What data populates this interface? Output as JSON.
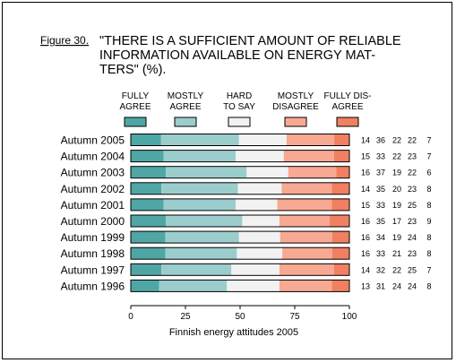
{
  "figure_label": "Figure 30.",
  "title_lines": [
    "\"THERE IS A SUFFICIENT AMOUNT OF RELIABLE",
    "INFORMATION AVAILABLE ON ENERGY MAT-",
    "TERS\" (%)."
  ],
  "source_note": "Finnish energy attitudes 2005",
  "chart_data": {
    "type": "bar",
    "orientation": "horizontal",
    "stacked": true,
    "title": "\"THERE IS A SUFFICIENT AMOUNT OF RELIABLE INFORMATION AVAILABLE ON ENERGY MATTERS\" (%).",
    "categories": [
      "Autumn 2005",
      "Autumn 2004",
      "Autumn 2003",
      "Autumn 2002",
      "Autumn 2001",
      "Autumn 2000",
      "Autumn 1999",
      "Autumn 1998",
      "Autumn 1997",
      "Autumn 1996"
    ],
    "series": [
      {
        "name": "FULLY AGREE",
        "label_lines": [
          "FULLY",
          "AGREE"
        ],
        "color": "#4fa7a5",
        "values": [
          14,
          15,
          16,
          14,
          15,
          16,
          16,
          16,
          14,
          13
        ]
      },
      {
        "name": "MOSTLY AGREE",
        "label_lines": [
          "MOSTLY",
          "AGREE"
        ],
        "color": "#9ccdcd",
        "values": [
          36,
          33,
          37,
          35,
          33,
          35,
          34,
          33,
          32,
          31
        ]
      },
      {
        "name": "HARD TO SAY",
        "label_lines": [
          "HARD",
          "TO SAY"
        ],
        "color": "#f2f2f2",
        "values": [
          22,
          22,
          19,
          20,
          19,
          17,
          19,
          21,
          22,
          24
        ]
      },
      {
        "name": "MOSTLY DISAGREE",
        "label_lines": [
          "MOSTLY",
          "DISAGREE"
        ],
        "color": "#f8a993",
        "values": [
          22,
          23,
          22,
          23,
          25,
          23,
          24,
          23,
          25,
          24
        ]
      },
      {
        "name": "FULLY DISAGREE",
        "label_lines": [
          "FULLY DIS-",
          "AGREE"
        ],
        "color": "#f08060",
        "values": [
          7,
          7,
          6,
          8,
          8,
          9,
          8,
          8,
          7,
          8
        ]
      }
    ],
    "xlim": [
      0,
      100
    ],
    "xticks": [
      0,
      25,
      50,
      75,
      100
    ],
    "xlabel": "",
    "ylabel": "",
    "grid": false,
    "legend_position": "top"
  }
}
